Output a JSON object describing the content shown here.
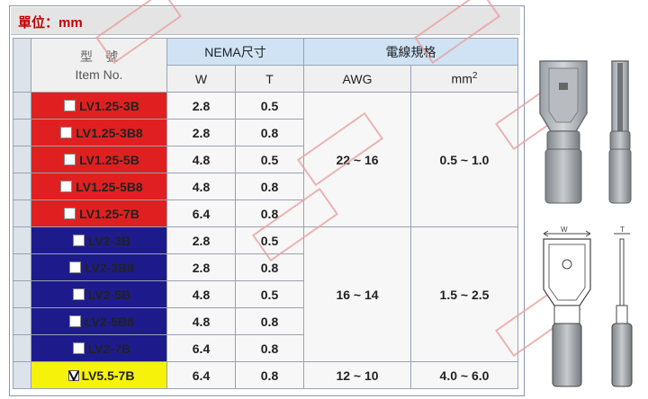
{
  "unit_label": "單位：mm",
  "headers": {
    "item_zh": "型　號",
    "item_en": "Item No.",
    "nema": "NEMA尺寸",
    "w": "W",
    "t": "T",
    "wire": "電線規格",
    "awg": "AWG",
    "mm": "mm",
    "mm_sup": "2"
  },
  "rows": [
    {
      "item": "LV1.25-3B",
      "w": "2.8",
      "t": "0.5",
      "color": "#e02020"
    },
    {
      "item": "LV1.25-3B8",
      "w": "2.8",
      "t": "0.8",
      "color": "#e02020"
    },
    {
      "item": "LV1.25-5B",
      "w": "4.8",
      "t": "0.5",
      "color": "#e02020"
    },
    {
      "item": "LV1.25-5B8",
      "w": "4.8",
      "t": "0.8",
      "color": "#e02020"
    },
    {
      "item": "LV1.25-7B",
      "w": "6.4",
      "t": "0.8",
      "color": "#e02020"
    },
    {
      "item": "LV2-3B",
      "w": "2.8",
      "t": "0.5",
      "color": "#1d1b8c"
    },
    {
      "item": "LV2-3B8",
      "w": "2.8",
      "t": "0.8",
      "color": "#1d1b8c"
    },
    {
      "item": "LV2-5B",
      "w": "4.8",
      "t": "0.5",
      "color": "#1d1b8c"
    },
    {
      "item": "LV2-5B8",
      "w": "4.8",
      "t": "0.8",
      "color": "#1d1b8c"
    },
    {
      "item": "LV2-7B",
      "w": "6.4",
      "t": "0.8",
      "color": "#1d1b8c"
    },
    {
      "item": "LV5.5-7B",
      "w": "6.4",
      "t": "0.8",
      "color": "#f6f20a"
    }
  ],
  "groups": [
    {
      "awg": "22 ~ 16",
      "mm2": "0.5 ~ 1.0"
    },
    {
      "awg": "16 ~ 14",
      "mm2": "1.5 ~ 2.5"
    },
    {
      "awg": "12 ~ 10",
      "mm2": "4.0 ~ 6.0"
    }
  ],
  "diagram": {
    "w_label": "W",
    "t_label": "T"
  }
}
